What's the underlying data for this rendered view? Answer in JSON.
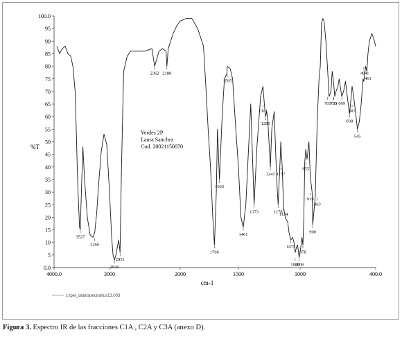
{
  "chart_data": {
    "type": "line",
    "title": "",
    "xlabel": "cm-1",
    "ylabel": "%T",
    "x_reversed": true,
    "xlim": [
      4000.0,
      400.0
    ],
    "ylim": [
      0.0,
      100.0
    ],
    "grid": false,
    "x_ticks": [
      "4000.0",
      "3000",
      "2000",
      "1500",
      "1000",
      "400.0"
    ],
    "x_tick_values": [
      4000,
      3000,
      2000,
      1500,
      1000,
      400
    ],
    "y_ticks": [
      "0.0",
      "5",
      "10",
      "15",
      "20",
      "25",
      "30",
      "35",
      "40",
      "45",
      "50",
      "55",
      "60",
      "65",
      "70",
      "75",
      "80",
      "85",
      "90",
      "95",
      "100.0"
    ],
    "series": [
      {
        "x": [
          3950,
          3900,
          3850,
          3800,
          3750,
          3700,
          3660,
          3620,
          3600,
          3580,
          3560,
          3540,
          3527,
          3500,
          3480,
          3450,
          3400,
          3350,
          3300,
          3266,
          3230,
          3200,
          3150,
          3100,
          3050,
          3000,
          2970,
          2950,
          2930,
          2910,
          2890,
          2870,
          2851,
          2830,
          2800,
          2750,
          2700,
          2600,
          2500,
          2400,
          2362,
          2330,
          2300,
          2250,
          2200,
          2188,
          2170,
          2100,
          2050,
          2000,
          1950,
          1900,
          1850,
          1800,
          1780,
          1760,
          1740,
          1720,
          1706,
          1690,
          1680,
          1663,
          1640,
          1620,
          1600,
          1595,
          1570,
          1550,
          1530,
          1500,
          1480,
          1461,
          1440,
          1420,
          1400,
          1373,
          1350,
          1320,
          1301,
          1290,
          1280,
          1270,
          1260,
          1241,
          1230,
          1210,
          1190,
          1178,
          1160,
          1157,
          1145,
          1134,
          1120,
          1100,
          1090,
          1075,
          1060,
          1050,
          1040,
          1030,
          1020,
          1008,
          995,
          985,
          978,
          970,
          963,
          955,
          945,
          930,
          919,
          905,
          900,
          880,
          863,
          850,
          840,
          830,
          820,
          810,
          795,
          781,
          770,
          755,
          745,
          735,
          725,
          715,
          700,
          690,
          669,
          655,
          640,
          625,
          608,
          600,
          587,
          575,
          560,
          545,
          530,
          515,
          500,
          494,
          480,
          470,
          461,
          450,
          430,
          415,
          400
        ],
        "y": [
          88,
          85,
          87,
          88,
          85,
          84,
          80,
          70,
          55,
          38,
          26,
          16,
          15,
          35,
          48,
          35,
          20,
          13,
          12,
          14,
          22,
          32,
          46,
          53,
          49,
          30,
          12,
          5,
          3,
          5,
          8,
          11,
          6,
          40,
          78,
          84,
          86,
          86,
          86,
          87,
          80,
          83,
          86,
          87,
          86,
          80,
          87,
          93,
          96,
          98,
          99,
          99,
          95,
          88,
          72,
          55,
          40,
          20,
          9,
          30,
          55,
          35,
          60,
          75,
          77,
          80,
          79,
          75,
          60,
          40,
          20,
          16,
          25,
          45,
          65,
          25,
          48,
          68,
          72,
          65,
          60,
          62,
          57,
          40,
          55,
          62,
          35,
          25,
          45,
          50,
          40,
          24,
          20,
          18,
          14,
          11,
          12,
          10,
          6,
          8,
          9,
          4,
          8,
          12,
          9,
          20,
          42,
          47,
          43,
          50,
          36,
          30,
          17,
          28,
          60,
          75,
          80,
          97,
          99,
          98,
          90,
          78,
          68,
          70,
          78,
          74,
          68,
          70,
          72,
          75,
          68,
          70,
          74,
          68,
          61,
          65,
          72,
          68,
          62,
          55,
          58,
          65,
          75,
          74,
          80,
          78,
          85,
          90,
          93,
          91,
          88
        ],
        "annotations": [
          {
            "label": "3527",
            "x": 3527,
            "y": 15
          },
          {
            "label": "3266",
            "x": 3266,
            "y": 12
          },
          {
            "label": "2930",
            "x": 2930,
            "y": 3
          },
          {
            "label": "2851",
            "x": 2851,
            "y": 6
          },
          {
            "label": "2362",
            "x": 2362,
            "y": 80
          },
          {
            "label": "2188",
            "x": 2188,
            "y": 80
          },
          {
            "label": "1706",
            "x": 1706,
            "y": 9
          },
          {
            "label": "1663",
            "x": 1663,
            "y": 35
          },
          {
            "label": "1595",
            "x": 1595,
            "y": 77
          },
          {
            "label": "1461",
            "x": 1461,
            "y": 16
          },
          {
            "label": "1373",
            "x": 1373,
            "y": 25
          },
          {
            "label": "1301",
            "x": 1301,
            "y": 65
          },
          {
            "label": "1280",
            "x": 1280,
            "y": 60
          },
          {
            "label": "1241",
            "x": 1241,
            "y": 40
          },
          {
            "label": "1178",
            "x": 1178,
            "y": 25
          },
          {
            "label": "1157",
            "x": 1157,
            "y": 40
          },
          {
            "label": "1134",
            "x": 1134,
            "y": 24
          },
          {
            "label": "1075",
            "x": 1075,
            "y": 11
          },
          {
            "label": "1040",
            "x": 1040,
            "y": 4
          },
          {
            "label": "1008",
            "x": 1008,
            "y": 4
          },
          {
            "label": "978",
            "x": 978,
            "y": 9
          },
          {
            "label": "955",
            "x": 955,
            "y": 42
          },
          {
            "label": "919",
            "x": 919,
            "y": 30
          },
          {
            "label": "900",
            "x": 900,
            "y": 17
          },
          {
            "label": "863",
            "x": 863,
            "y": 28
          },
          {
            "label": "781",
            "x": 781,
            "y": 68
          },
          {
            "label": "735",
            "x": 735,
            "y": 68
          },
          {
            "label": "733",
            "x": 733,
            "y": 68
          },
          {
            "label": "669",
            "x": 669,
            "y": 68
          },
          {
            "label": "608",
            "x": 608,
            "y": 61
          },
          {
            "label": "587",
            "x": 587,
            "y": 65
          },
          {
            "label": "545",
            "x": 545,
            "y": 55
          },
          {
            "label": "494",
            "x": 494,
            "y": 80
          },
          {
            "label": "461",
            "x": 461,
            "y": 78
          }
        ]
      }
    ],
    "annotations_text": [
      "Verdes 2P",
      "Laura Sanchez",
      "Cod. 20021150070"
    ],
    "footer_file": "c:\\pel_data\\spectra\\lus13.003"
  },
  "caption": {
    "label": "Figura 3.",
    "text_before": " Espectro ",
    "text_ir": "IR",
    "text_after": " de las fracciones C1A , C2A y C3A (anexo D)."
  },
  "colors": {
    "trace": "#1a1a1a",
    "axis": "#222222",
    "frame": "#9a9a9a"
  }
}
